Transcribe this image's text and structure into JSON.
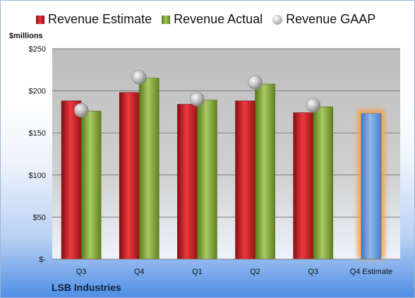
{
  "legend": {
    "estimate": "Revenue Estimate",
    "actual": "Revenue Actual",
    "gaap": "Revenue GAAP"
  },
  "company": "LSB Industries",
  "colors": {
    "estimate": "#d42a2f",
    "actual": "#8db24a",
    "gaap": "#b5b5b5",
    "forecast": "#6a9ad6",
    "forecast_glow": "#f3a24e",
    "plot_bg": "#c0c0c0"
  },
  "chart_data": {
    "type": "bar",
    "ylabel": "$millions",
    "ylim": [
      0,
      250
    ],
    "yticks": [
      0,
      50,
      100,
      150,
      200,
      250
    ],
    "ytick_labels": [
      "$-",
      "$50",
      "$100",
      "$150",
      "$200",
      "$250"
    ],
    "grid": true,
    "legend_position": "top",
    "categories": [
      "Q3",
      "Q4",
      "Q1",
      "Q2",
      "Q3",
      "Q4 Estimate"
    ],
    "series": [
      {
        "name": "Revenue Estimate",
        "kind": "bar",
        "values": [
          188,
          198,
          184,
          188,
          174,
          null
        ]
      },
      {
        "name": "Revenue Actual",
        "kind": "bar",
        "values": [
          176,
          215,
          189,
          208,
          181,
          173
        ]
      },
      {
        "name": "Revenue GAAP",
        "kind": "marker",
        "values": [
          177,
          216,
          190,
          210,
          183,
          null
        ]
      }
    ],
    "forecast_category_index": 5
  }
}
